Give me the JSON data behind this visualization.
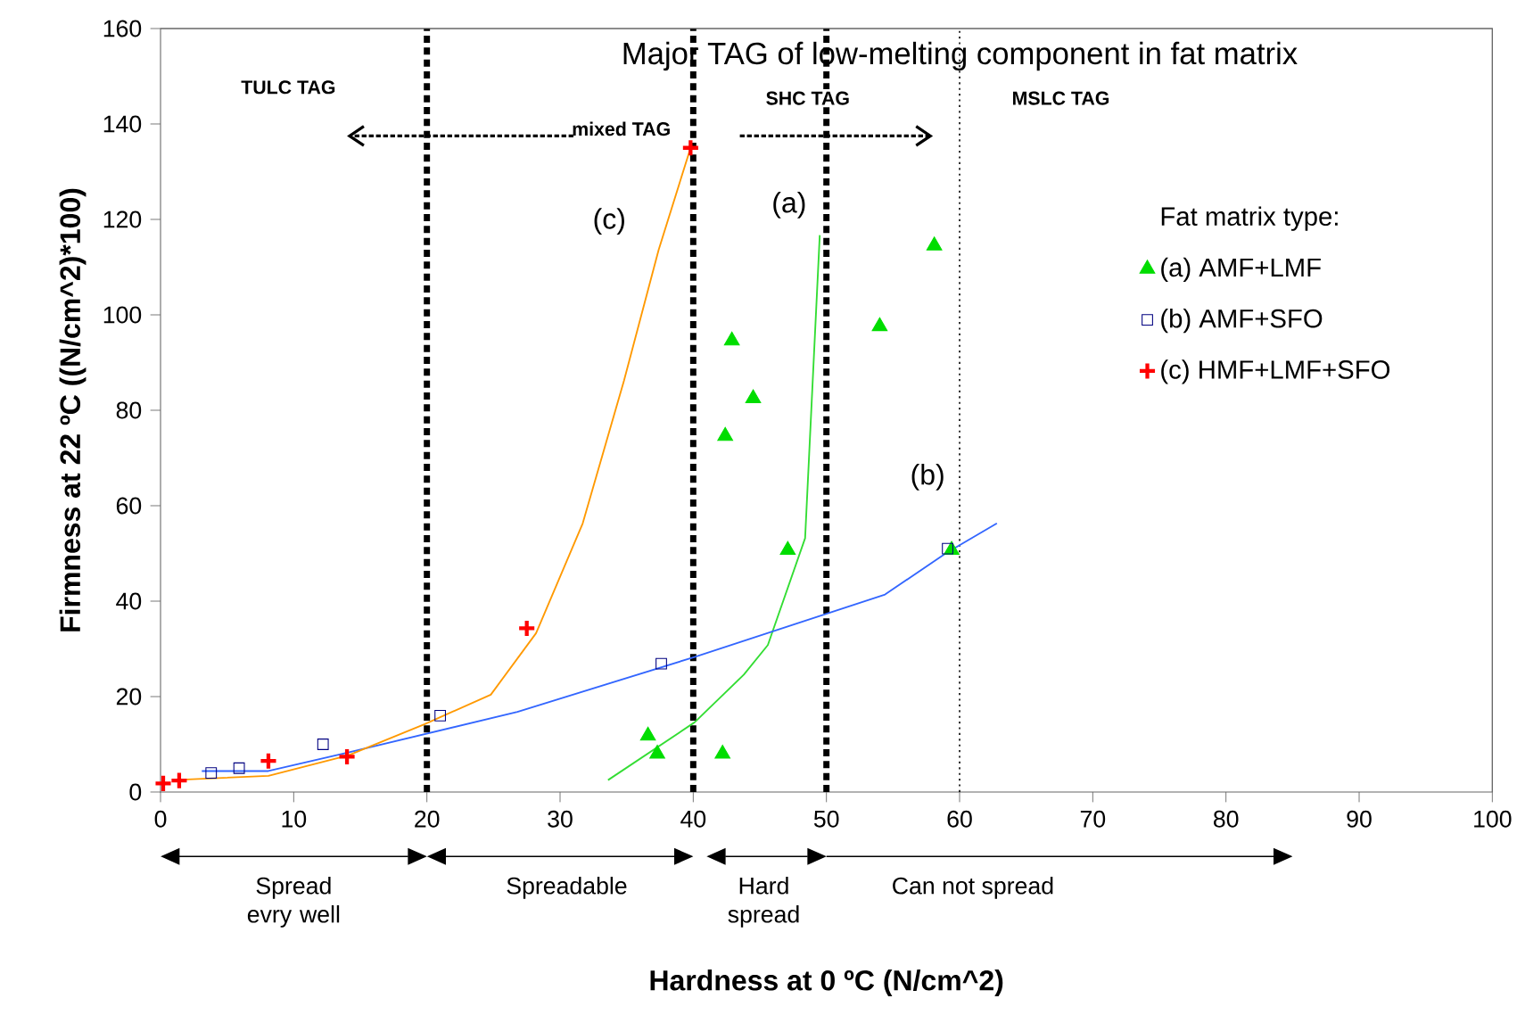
{
  "chart_data": {
    "type": "scatter",
    "title": "Major TAG of low-melting component in fat matrix",
    "xlabel": "Hardness at 0 ºC (N/cm^2)",
    "ylabel": "Firmness at 22 ºC ((N/cm^2)*100)",
    "legend_title": "Fat matrix type:",
    "xlim": [
      0,
      100
    ],
    "ylim": [
      0,
      160
    ],
    "xticks": [
      0,
      10,
      20,
      30,
      40,
      50,
      60,
      70,
      80,
      90,
      100
    ],
    "yticks": [
      0,
      20,
      40,
      60,
      80,
      100,
      120,
      140,
      160
    ],
    "grid": false,
    "legend": "right",
    "series": [
      {
        "type": "line",
        "color": "#33dd33",
        "marker": "none",
        "x": [
          33.6,
          40.1,
          43.8,
          45.6,
          48.4,
          49.5
        ],
        "values": [
          2.5,
          14.6,
          24.6,
          30.8,
          53.2,
          116.7
        ]
      },
      {
        "type": "line",
        "color": "#3366ff",
        "marker": "none",
        "x": [
          3.1,
          8.1,
          14.1,
          26.8,
          40.1,
          54.4,
          59.0,
          62.8
        ],
        "values": [
          4.4,
          4.4,
          8.3,
          16.8,
          28.3,
          41.4,
          50.1,
          56.3
        ]
      },
      {
        "type": "line",
        "color": "#ff9900",
        "marker": "none",
        "x": [
          0.9,
          8.1,
          14.1,
          19.8,
          24.8,
          28.2,
          31.7,
          34.8,
          37.4,
          39.8
        ],
        "values": [
          2.5,
          3.4,
          7.7,
          14.2,
          20.4,
          33.3,
          56.3,
          86.2,
          113.6,
          135
        ]
      },
      {
        "name": "(a) AMF+LMF",
        "color": "#00dd00",
        "marker": "triangle",
        "x": [
          36.6,
          37.3,
          42.2,
          42.4,
          42.9,
          44.5,
          47.1,
          54.0,
          58.1,
          59.4
        ],
        "values": [
          11.8,
          8.0,
          8.0,
          74.6,
          94.6,
          82.5,
          50.7,
          97.6,
          114.5,
          50.7
        ]
      },
      {
        "name": "(b) AMF+SFO",
        "color": "#000080",
        "marker": "square",
        "x": [
          3.8,
          5.9,
          12.2,
          21.0,
          37.6,
          59.1
        ],
        "values": [
          4.0,
          5.0,
          10.0,
          16.0,
          26.9,
          51.0
        ]
      },
      {
        "name": "(c) HMF+LMF+SFO",
        "color": "#ff0000",
        "marker": "cross",
        "x": [
          0.2,
          1.4,
          8.1,
          14.0,
          27.5,
          39.8
        ],
        "values": [
          1.8,
          2.4,
          6.5,
          7.4,
          34.3,
          135
        ]
      }
    ],
    "ref_lines": [
      {
        "axis": "x",
        "value": 20,
        "line_style": "dashed",
        "color": "#000000"
      },
      {
        "axis": "x",
        "value": 40,
        "line_style": "dashed",
        "color": "#000000"
      },
      {
        "axis": "x",
        "value": 50,
        "line_style": "dashed",
        "color": "#000000"
      },
      {
        "axis": "x",
        "value": 60,
        "line_style": "dotted",
        "color": "#000000"
      }
    ],
    "annotations": [
      "TULC TAG",
      "mixed TAG",
      "SHC TAG",
      "MSLC TAG",
      "(c)",
      "(a)",
      "(b)",
      "Spread evry well",
      "Spreadable",
      "Hard spread",
      "Can not spread"
    ]
  }
}
